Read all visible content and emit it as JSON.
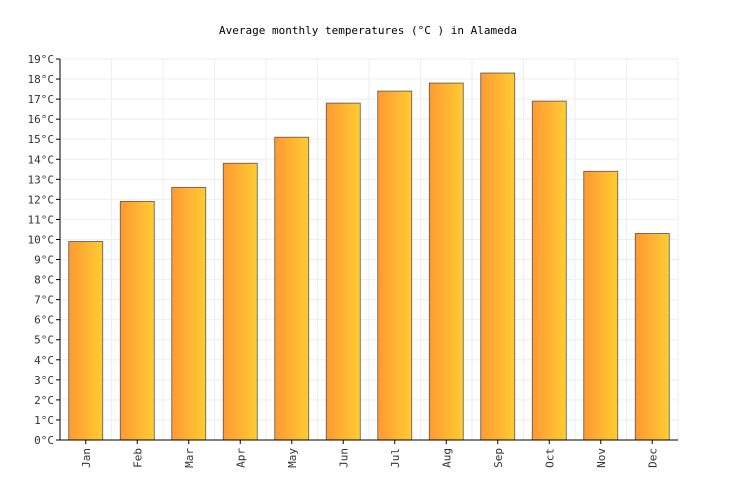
{
  "chart_data": {
    "type": "bar",
    "title": "Average monthly temperatures (°C ) in Alameda",
    "categories": [
      "Jan",
      "Feb",
      "Mar",
      "Apr",
      "May",
      "Jun",
      "Jul",
      "Aug",
      "Sep",
      "Oct",
      "Nov",
      "Dec"
    ],
    "values": [
      9.9,
      11.9,
      12.6,
      13.8,
      15.1,
      16.8,
      17.4,
      17.8,
      18.3,
      16.9,
      13.4,
      10.3
    ],
    "ylim": [
      0,
      19
    ],
    "ytick_labels": [
      "0°C",
      "1°C",
      "2°C",
      "3°C",
      "4°C",
      "5°C",
      "6°C",
      "7°C",
      "8°C",
      "9°C",
      "10°C",
      "11°C",
      "12°C",
      "13°C",
      "14°C",
      "15°C",
      "16°C",
      "17°C",
      "18°C",
      "19°C"
    ],
    "grid": true,
    "legend": "none",
    "colors": {
      "bar_left": "#ff9933",
      "bar_right": "#ffcc33",
      "bar_stroke": "#555555",
      "grid": "#eeeeee",
      "axis": "#000000"
    }
  }
}
